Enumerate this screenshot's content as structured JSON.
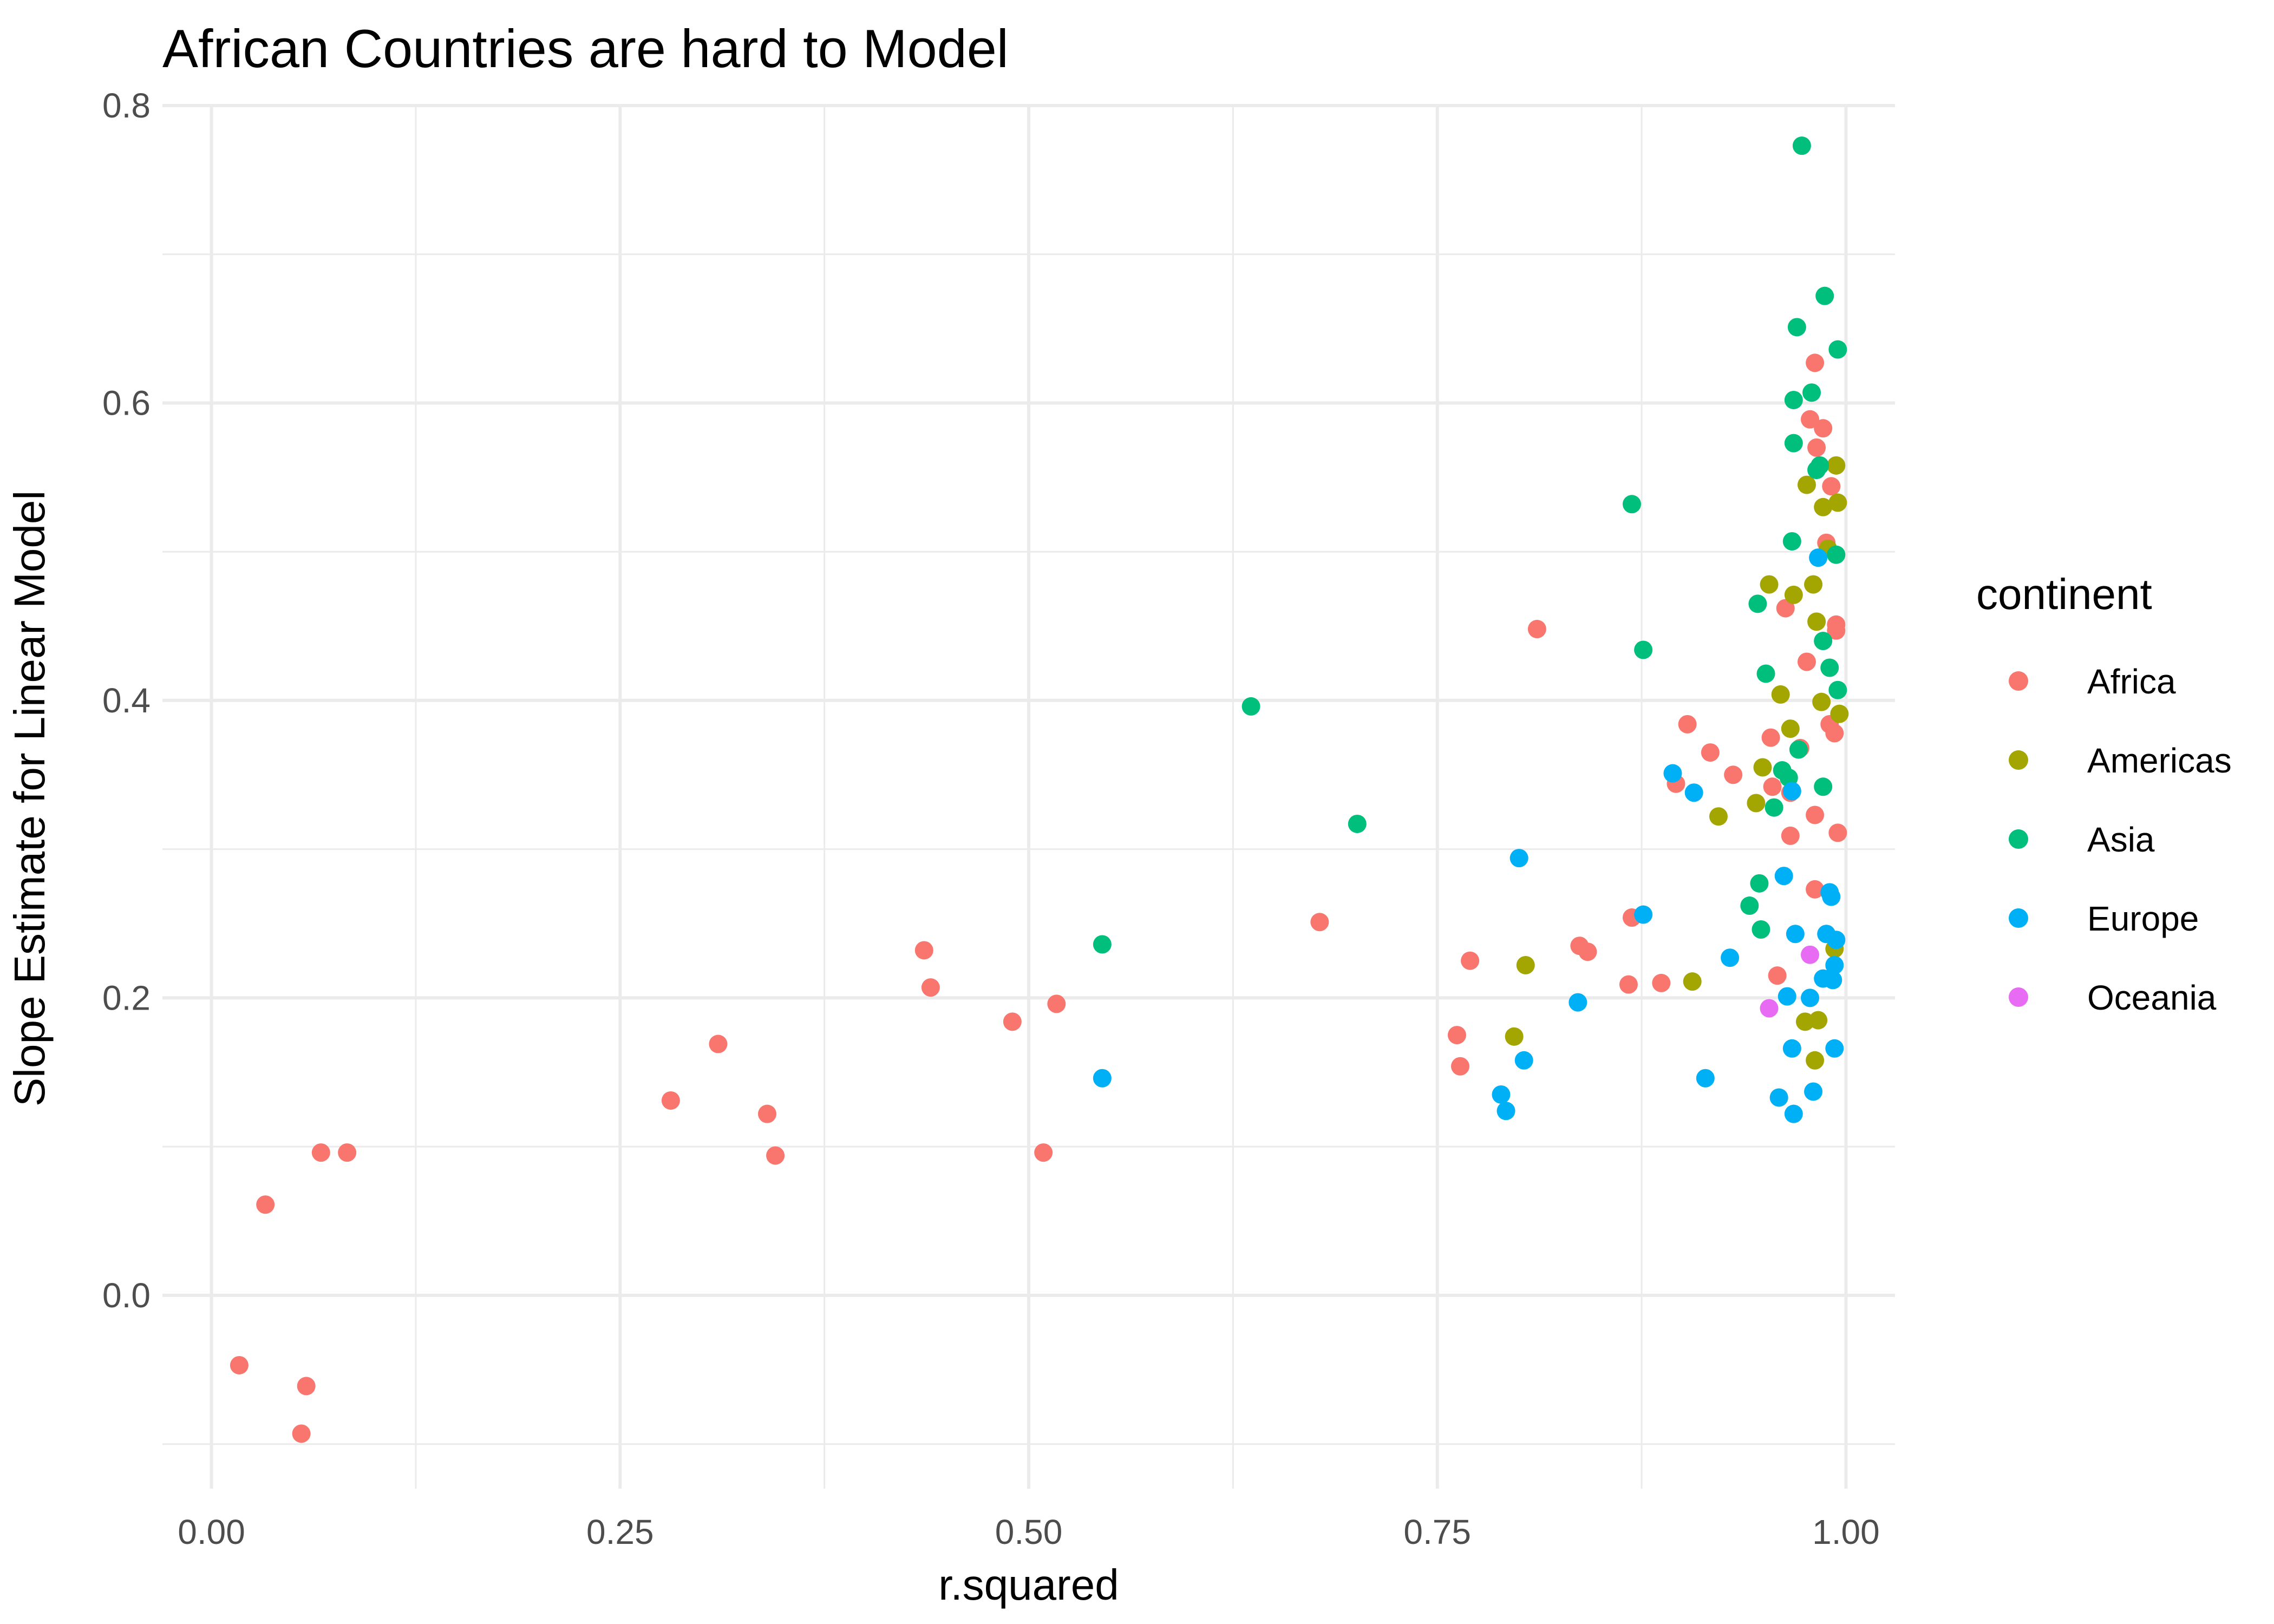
{
  "chart_data": {
    "type": "scatter",
    "title": "African Countries are hard to Model",
    "xlabel": "r.squared",
    "ylabel": "Slope Estimate for Linear Model",
    "xlim": [
      -0.03,
      1.03
    ],
    "ylim": [
      -0.13,
      0.8
    ],
    "x_ticks": [
      0.0,
      0.25,
      0.5,
      0.75,
      1.0
    ],
    "x_tick_labels": [
      "0.00",
      "0.25",
      "0.50",
      "0.75",
      "1.00"
    ],
    "y_ticks": [
      0.0,
      0.2,
      0.4,
      0.6,
      0.8
    ],
    "y_tick_labels": [
      "0.0",
      "0.2",
      "0.4",
      "0.6",
      "0.8"
    ],
    "grid": true,
    "legend": {
      "title": "continent",
      "position": "right",
      "entries": [
        {
          "name": "Africa",
          "color": "#F8766D"
        },
        {
          "name": "Americas",
          "color": "#A3A500"
        },
        {
          "name": "Asia",
          "color": "#00BF7D"
        },
        {
          "name": "Europe",
          "color": "#00B0F6"
        },
        {
          "name": "Oceania",
          "color": "#E76BF3"
        }
      ]
    },
    "series": [
      {
        "name": "Africa",
        "color": "#F8766D",
        "points": [
          [
            0.017,
            -0.047
          ],
          [
            0.033,
            0.061
          ],
          [
            0.055,
            -0.093
          ],
          [
            0.058,
            -0.061
          ],
          [
            0.067,
            0.096
          ],
          [
            0.083,
            0.096
          ],
          [
            0.281,
            0.131
          ],
          [
            0.31,
            0.169
          ],
          [
            0.34,
            0.122
          ],
          [
            0.345,
            0.094
          ],
          [
            0.436,
            0.232
          ],
          [
            0.44,
            0.207
          ],
          [
            0.49,
            0.184
          ],
          [
            0.509,
            0.096
          ],
          [
            0.517,
            0.196
          ],
          [
            0.678,
            0.251
          ],
          [
            0.762,
            0.175
          ],
          [
            0.764,
            0.154
          ],
          [
            0.77,
            0.225
          ],
          [
            0.811,
            0.448
          ],
          [
            0.837,
            0.235
          ],
          [
            0.842,
            0.231
          ],
          [
            0.867,
            0.209
          ],
          [
            0.869,
            0.254
          ],
          [
            0.887,
            0.21
          ],
          [
            0.896,
            0.344
          ],
          [
            0.903,
            0.384
          ],
          [
            0.917,
            0.365
          ],
          [
            0.931,
            0.35
          ],
          [
            0.954,
            0.375
          ],
          [
            0.955,
            0.342
          ],
          [
            0.958,
            0.215
          ],
          [
            0.963,
            0.462
          ],
          [
            0.966,
            0.338
          ],
          [
            0.966,
            0.309
          ],
          [
            0.972,
            0.368
          ],
          [
            0.976,
            0.426
          ],
          [
            0.978,
            0.589
          ],
          [
            0.981,
            0.627
          ],
          [
            0.981,
            0.323
          ],
          [
            0.981,
            0.273
          ],
          [
            0.982,
            0.57
          ],
          [
            0.986,
            0.583
          ],
          [
            0.988,
            0.506
          ],
          [
            0.99,
            0.384
          ],
          [
            0.991,
            0.544
          ],
          [
            0.993,
            0.378
          ],
          [
            0.994,
            0.451
          ],
          [
            0.994,
            0.447
          ],
          [
            0.995,
            0.311
          ]
        ]
      },
      {
        "name": "Americas",
        "color": "#A3A500",
        "points": [
          [
            0.797,
            0.174
          ],
          [
            0.804,
            0.222
          ],
          [
            0.906,
            0.211
          ],
          [
            0.922,
            0.322
          ],
          [
            0.945,
            0.331
          ],
          [
            0.949,
            0.355
          ],
          [
            0.953,
            0.478
          ],
          [
            0.96,
            0.404
          ],
          [
            0.966,
            0.381
          ],
          [
            0.968,
            0.471
          ],
          [
            0.975,
            0.184
          ],
          [
            0.976,
            0.545
          ],
          [
            0.98,
            0.478
          ],
          [
            0.981,
            0.158
          ],
          [
            0.982,
            0.453
          ],
          [
            0.983,
            0.185
          ],
          [
            0.985,
            0.399
          ],
          [
            0.986,
            0.53
          ],
          [
            0.989,
            0.502
          ],
          [
            0.993,
            0.233
          ],
          [
            0.994,
            0.558
          ],
          [
            0.995,
            0.533
          ],
          [
            0.996,
            0.391
          ]
        ]
      },
      {
        "name": "Asia",
        "color": "#00BF7D",
        "points": [
          [
            0.545,
            0.236
          ],
          [
            0.636,
            0.396
          ],
          [
            0.701,
            0.317
          ],
          [
            0.869,
            0.532
          ],
          [
            0.876,
            0.434
          ],
          [
            0.941,
            0.262
          ],
          [
            0.946,
            0.465
          ],
          [
            0.947,
            0.277
          ],
          [
            0.948,
            0.246
          ],
          [
            0.951,
            0.418
          ],
          [
            0.956,
            0.328
          ],
          [
            0.961,
            0.353
          ],
          [
            0.965,
            0.348
          ],
          [
            0.967,
            0.507
          ],
          [
            0.968,
            0.573
          ],
          [
            0.968,
            0.602
          ],
          [
            0.97,
            0.651
          ],
          [
            0.971,
            0.367
          ],
          [
            0.973,
            0.773
          ],
          [
            0.979,
            0.607
          ],
          [
            0.982,
            0.555
          ],
          [
            0.984,
            0.558
          ],
          [
            0.986,
            0.342
          ],
          [
            0.986,
            0.44
          ],
          [
            0.987,
            0.672
          ],
          [
            0.99,
            0.422
          ],
          [
            0.994,
            0.498
          ],
          [
            0.995,
            0.636
          ],
          [
            0.995,
            0.407
          ]
        ]
      },
      {
        "name": "Europe",
        "color": "#00B0F6",
        "points": [
          [
            0.545,
            0.146
          ],
          [
            0.789,
            0.135
          ],
          [
            0.792,
            0.124
          ],
          [
            0.8,
            0.294
          ],
          [
            0.803,
            0.158
          ],
          [
            0.836,
            0.197
          ],
          [
            0.876,
            0.256
          ],
          [
            0.894,
            0.351
          ],
          [
            0.907,
            0.338
          ],
          [
            0.914,
            0.146
          ],
          [
            0.929,
            0.227
          ],
          [
            0.959,
            0.133
          ],
          [
            0.962,
            0.282
          ],
          [
            0.964,
            0.201
          ],
          [
            0.967,
            0.339
          ],
          [
            0.967,
            0.166
          ],
          [
            0.968,
            0.122
          ],
          [
            0.969,
            0.243
          ],
          [
            0.978,
            0.2
          ],
          [
            0.98,
            0.137
          ],
          [
            0.983,
            0.496
          ],
          [
            0.986,
            0.213
          ],
          [
            0.988,
            0.243
          ],
          [
            0.99,
            0.271
          ],
          [
            0.991,
            0.268
          ],
          [
            0.992,
            0.212
          ],
          [
            0.993,
            0.166
          ],
          [
            0.993,
            0.222
          ],
          [
            0.994,
            0.239
          ]
        ]
      },
      {
        "name": "Oceania",
        "color": "#E76BF3",
        "points": [
          [
            0.953,
            0.193
          ],
          [
            0.978,
            0.229
          ]
        ]
      }
    ]
  }
}
